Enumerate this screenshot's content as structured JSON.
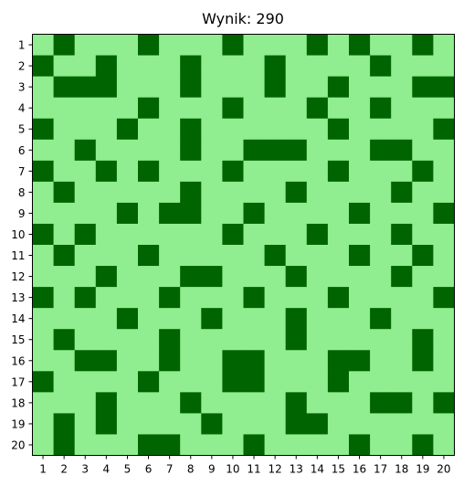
{
  "title": "Wynik: 290",
  "colors": {
    "empty": "#90ee90",
    "filled": "#006400",
    "axis": "#000000",
    "background": "#ffffff"
  },
  "chart_data": {
    "type": "heatmap",
    "title": "Wynik: 290",
    "x_ticks": [
      "1",
      "2",
      "3",
      "4",
      "5",
      "6",
      "7",
      "8",
      "9",
      "10",
      "11",
      "12",
      "13",
      "14",
      "15",
      "16",
      "17",
      "18",
      "19",
      "20"
    ],
    "y_ticks": [
      "1",
      "2",
      "3",
      "4",
      "5",
      "6",
      "7",
      "8",
      "9",
      "10",
      "11",
      "12",
      "13",
      "14",
      "15",
      "16",
      "17",
      "18",
      "19",
      "20"
    ],
    "legend": "none",
    "grid": false,
    "values": [
      [
        0,
        1,
        0,
        0,
        0,
        1,
        0,
        0,
        0,
        1,
        0,
        0,
        0,
        1,
        0,
        1,
        0,
        0,
        1,
        0
      ],
      [
        1,
        0,
        0,
        1,
        0,
        0,
        0,
        1,
        0,
        0,
        0,
        1,
        0,
        0,
        0,
        0,
        1,
        0,
        0,
        0
      ],
      [
        0,
        1,
        1,
        1,
        0,
        0,
        0,
        1,
        0,
        0,
        0,
        1,
        0,
        0,
        1,
        0,
        0,
        0,
        1,
        1
      ],
      [
        0,
        0,
        0,
        0,
        0,
        1,
        0,
        0,
        0,
        1,
        0,
        0,
        0,
        1,
        0,
        0,
        1,
        0,
        0,
        0
      ],
      [
        1,
        0,
        0,
        0,
        1,
        0,
        0,
        1,
        0,
        0,
        0,
        0,
        0,
        0,
        1,
        0,
        0,
        0,
        0,
        1
      ],
      [
        0,
        0,
        1,
        0,
        0,
        0,
        0,
        1,
        0,
        0,
        1,
        1,
        1,
        0,
        0,
        0,
        1,
        1,
        0,
        0
      ],
      [
        1,
        0,
        0,
        1,
        0,
        1,
        0,
        0,
        0,
        1,
        0,
        0,
        0,
        0,
        1,
        0,
        0,
        0,
        1,
        0
      ],
      [
        0,
        1,
        0,
        0,
        0,
        0,
        0,
        1,
        0,
        0,
        0,
        0,
        1,
        0,
        0,
        0,
        0,
        1,
        0,
        0
      ],
      [
        0,
        0,
        0,
        0,
        1,
        0,
        1,
        1,
        0,
        0,
        1,
        0,
        0,
        0,
        0,
        1,
        0,
        0,
        0,
        1
      ],
      [
        1,
        0,
        1,
        0,
        0,
        0,
        0,
        0,
        0,
        1,
        0,
        0,
        0,
        1,
        0,
        0,
        0,
        1,
        0,
        0
      ],
      [
        0,
        1,
        0,
        0,
        0,
        1,
        0,
        0,
        0,
        0,
        0,
        1,
        0,
        0,
        0,
        1,
        0,
        0,
        1,
        0
      ],
      [
        0,
        0,
        0,
        1,
        0,
        0,
        0,
        1,
        1,
        0,
        0,
        0,
        1,
        0,
        0,
        0,
        0,
        1,
        0,
        0
      ],
      [
        1,
        0,
        1,
        0,
        0,
        0,
        1,
        0,
        0,
        0,
        1,
        0,
        0,
        0,
        1,
        0,
        0,
        0,
        0,
        1
      ],
      [
        0,
        0,
        0,
        0,
        1,
        0,
        0,
        0,
        1,
        0,
        0,
        0,
        1,
        0,
        0,
        0,
        1,
        0,
        0,
        0
      ],
      [
        0,
        1,
        0,
        0,
        0,
        0,
        1,
        0,
        0,
        0,
        0,
        0,
        1,
        0,
        0,
        0,
        0,
        0,
        1,
        0
      ],
      [
        0,
        0,
        1,
        1,
        0,
        0,
        1,
        0,
        0,
        1,
        1,
        0,
        0,
        0,
        1,
        1,
        0,
        0,
        1,
        0
      ],
      [
        1,
        0,
        0,
        0,
        0,
        1,
        0,
        0,
        0,
        1,
        1,
        0,
        0,
        0,
        1,
        0,
        0,
        0,
        0,
        0
      ],
      [
        0,
        0,
        0,
        1,
        0,
        0,
        0,
        1,
        0,
        0,
        0,
        0,
        1,
        0,
        0,
        0,
        1,
        1,
        0,
        1
      ],
      [
        0,
        1,
        0,
        1,
        0,
        0,
        0,
        0,
        1,
        0,
        0,
        0,
        1,
        1,
        0,
        0,
        0,
        0,
        0,
        0
      ],
      [
        0,
        1,
        0,
        0,
        0,
        1,
        1,
        0,
        0,
        0,
        1,
        0,
        0,
        0,
        0,
        1,
        0,
        0,
        1,
        0
      ]
    ]
  }
}
